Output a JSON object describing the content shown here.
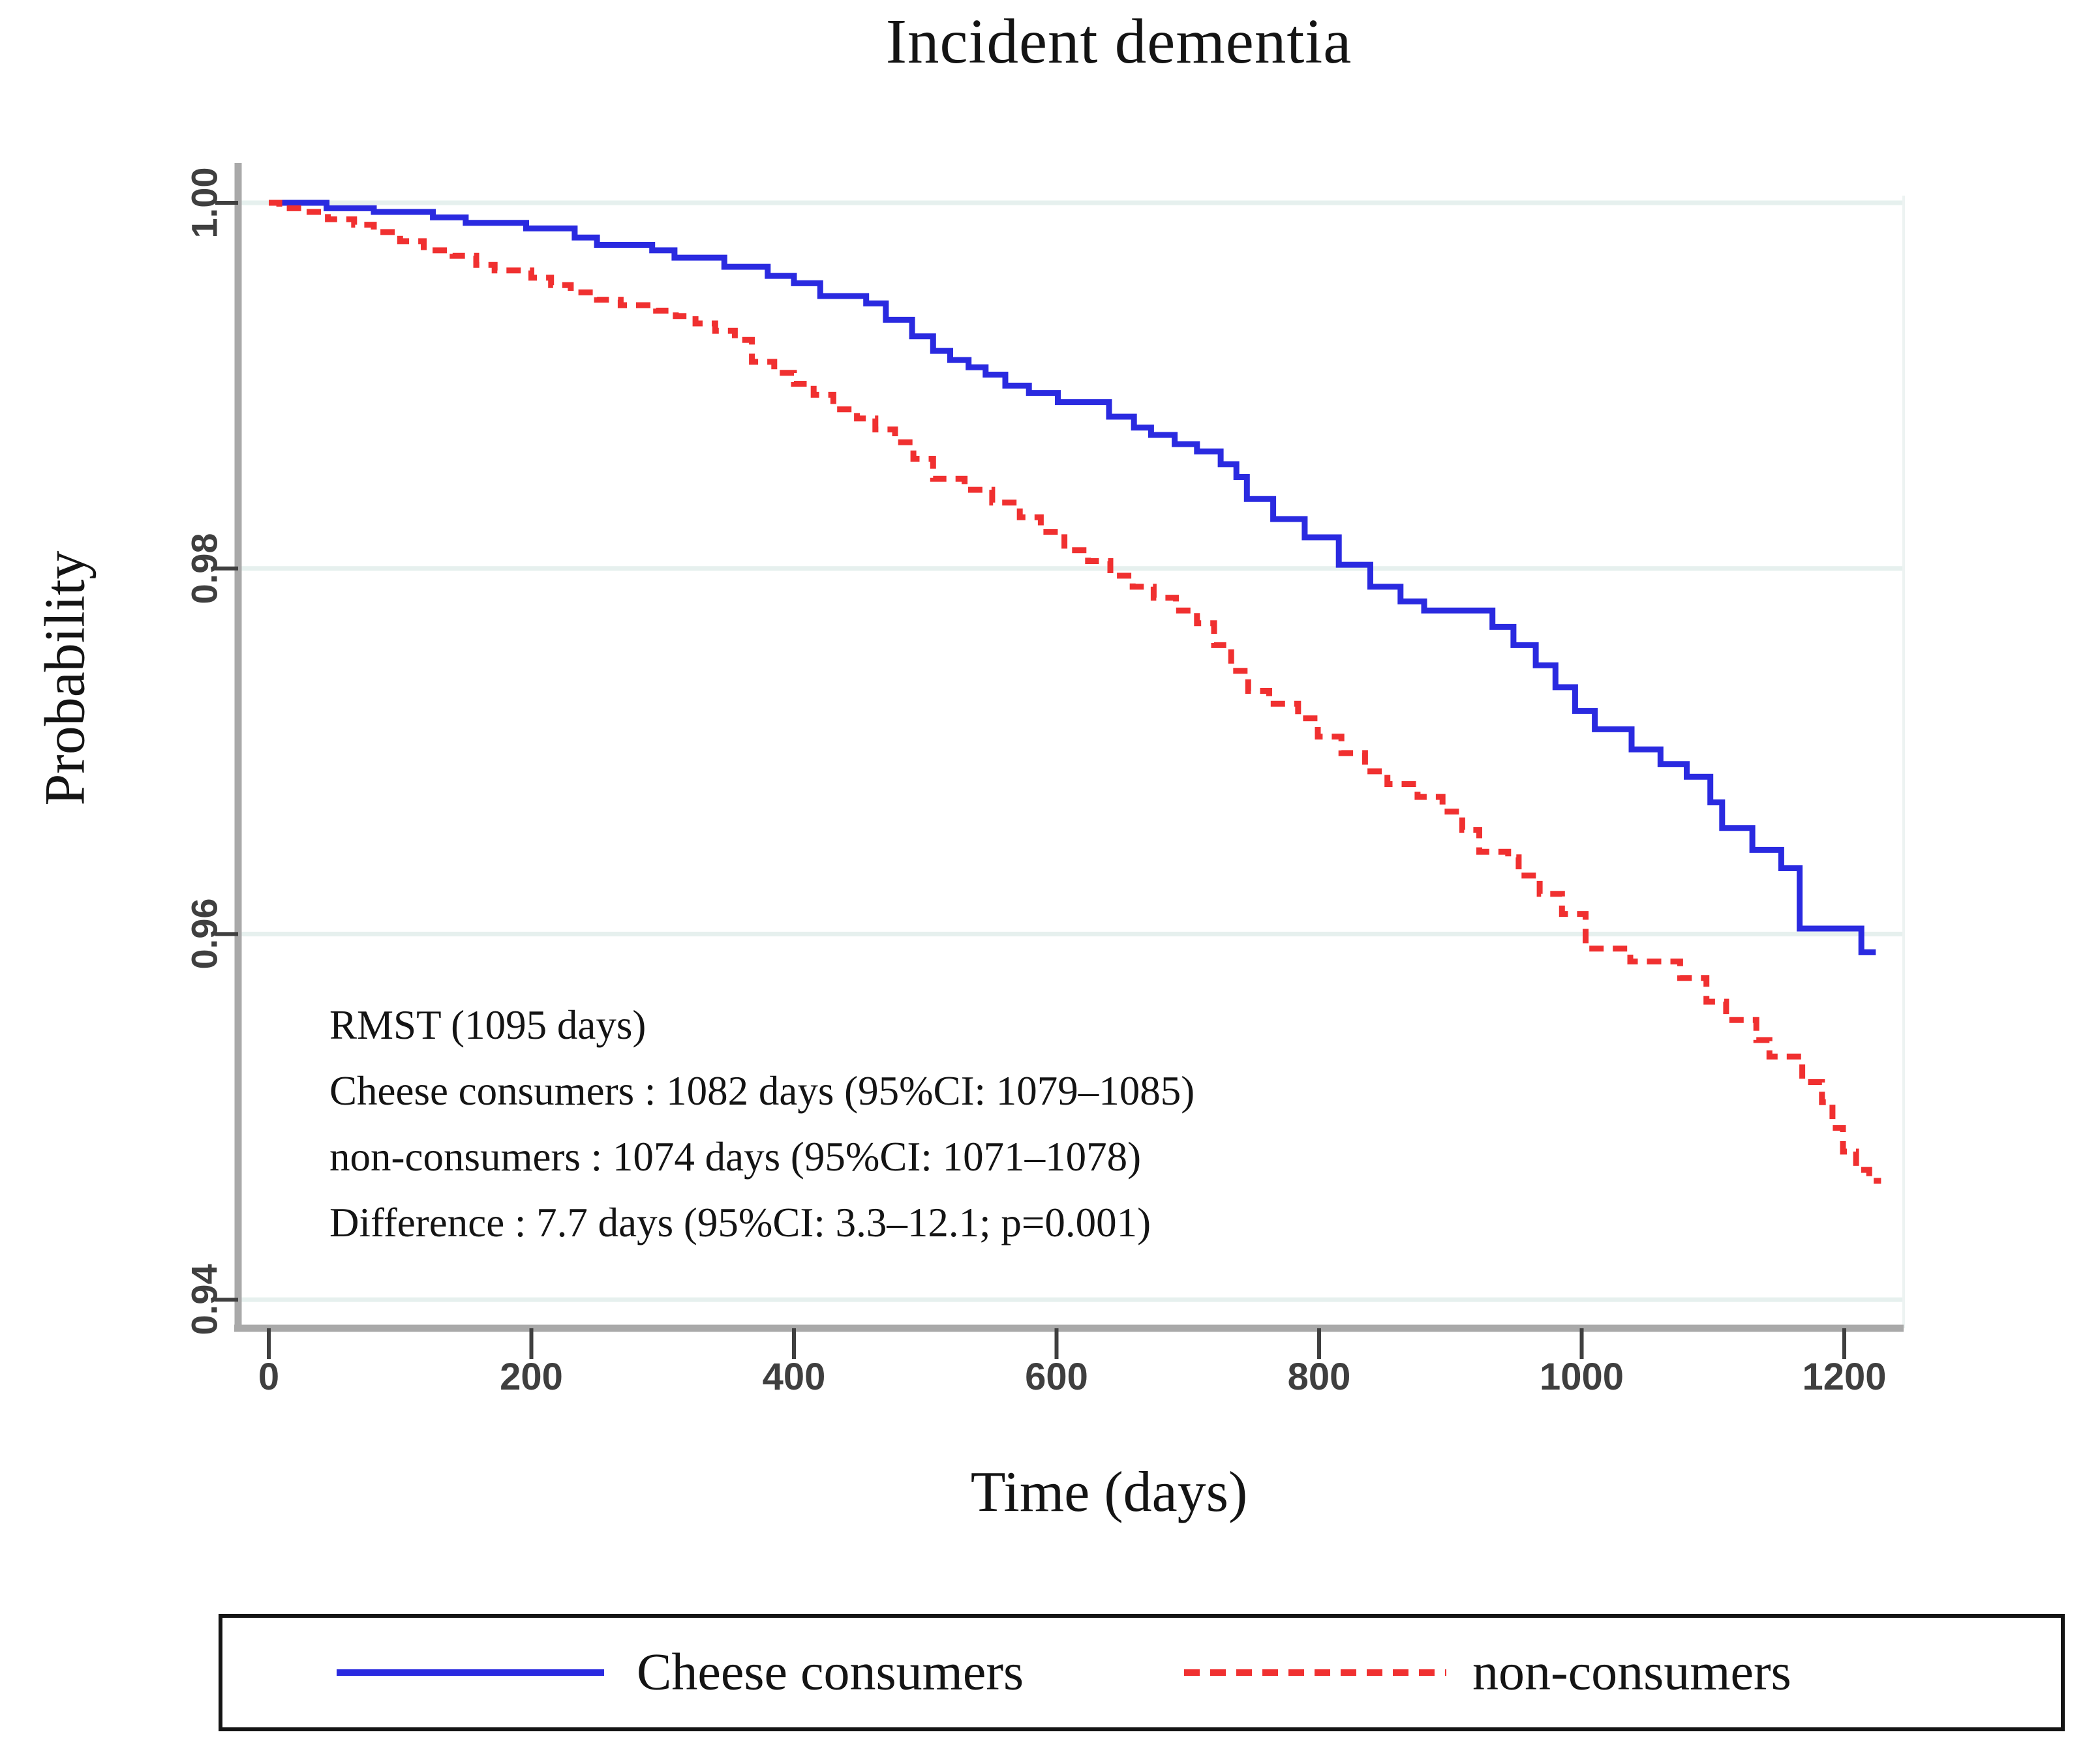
{
  "chart_data": {
    "type": "line",
    "subtype": "kaplan-meier-step",
    "title": "Incident dementia",
    "xlabel": "Time (days)",
    "ylabel": "Probability",
    "xlim": [
      0,
      1245
    ],
    "ylim": [
      0.9385,
      1.002
    ],
    "x_ticks": [
      0,
      200,
      400,
      600,
      800,
      1000,
      1200
    ],
    "x_tick_labels": [
      "0",
      "200",
      "400",
      "600",
      "800",
      "1000",
      "1200"
    ],
    "y_ticks": [
      1.0,
      0.98,
      0.96,
      0.94
    ],
    "y_tick_labels": [
      "1.00",
      "0.98",
      "0.96",
      "0.94"
    ],
    "grid": "horizontal-only",
    "legend_position": "bottom",
    "style": {
      "grid_color": "#e6f0ee",
      "axis_color": "#a9a9a9",
      "tick_color": "#3f3f3f",
      "right_border_color": "#edf3f2",
      "line_width": 9,
      "dash_pattern": "22 14"
    },
    "series": [
      {
        "name": "Cheese consumers",
        "color": "#2a2ae0",
        "line_style": "solid",
        "step": true,
        "points": [
          [
            0,
            1.0
          ],
          [
            44,
            1.0
          ],
          [
            44,
            0.9997
          ],
          [
            80,
            0.9997
          ],
          [
            80,
            0.9995
          ],
          [
            125,
            0.9995
          ],
          [
            125,
            0.9992
          ],
          [
            150,
            0.9992
          ],
          [
            150,
            0.9989
          ],
          [
            196,
            0.9989
          ],
          [
            196,
            0.9986
          ],
          [
            233,
            0.9986
          ],
          [
            233,
            0.9981
          ],
          [
            250,
            0.9981
          ],
          [
            250,
            0.9977
          ],
          [
            292,
            0.9977
          ],
          [
            292,
            0.9974
          ],
          [
            309,
            0.9974
          ],
          [
            309,
            0.997
          ],
          [
            347,
            0.997
          ],
          [
            347,
            0.9965
          ],
          [
            380,
            0.9965
          ],
          [
            380,
            0.996
          ],
          [
            400,
            0.996
          ],
          [
            400,
            0.9956
          ],
          [
            420,
            0.9956
          ],
          [
            420,
            0.9949
          ],
          [
            455,
            0.9949
          ],
          [
            455,
            0.9945
          ],
          [
            470,
            0.9945
          ],
          [
            470,
            0.9936
          ],
          [
            490,
            0.9936
          ],
          [
            490,
            0.9927
          ],
          [
            506,
            0.9927
          ],
          [
            506,
            0.9919
          ],
          [
            519,
            0.9919
          ],
          [
            519,
            0.9914
          ],
          [
            533,
            0.9914
          ],
          [
            533,
            0.991
          ],
          [
            546,
            0.991
          ],
          [
            546,
            0.9906
          ],
          [
            561,
            0.9906
          ],
          [
            561,
            0.99
          ],
          [
            579,
            0.99
          ],
          [
            579,
            0.9896
          ],
          [
            601,
            0.9896
          ],
          [
            601,
            0.9891
          ],
          [
            640,
            0.9891
          ],
          [
            640,
            0.9883
          ],
          [
            659,
            0.9883
          ],
          [
            659,
            0.9877
          ],
          [
            672,
            0.9877
          ],
          [
            672,
            0.9873
          ],
          [
            690,
            0.9873
          ],
          [
            690,
            0.9868
          ],
          [
            707,
            0.9868
          ],
          [
            707,
            0.9864
          ],
          [
            725,
            0.9864
          ],
          [
            725,
            0.9857
          ],
          [
            737,
            0.9857
          ],
          [
            737,
            0.985
          ],
          [
            745,
            0.985
          ],
          [
            745,
            0.9838
          ],
          [
            765,
            0.9838
          ],
          [
            765,
            0.9827
          ],
          [
            789,
            0.9827
          ],
          [
            789,
            0.9817
          ],
          [
            815,
            0.9817
          ],
          [
            815,
            0.9802
          ],
          [
            839,
            0.9802
          ],
          [
            839,
            0.979
          ],
          [
            862,
            0.979
          ],
          [
            862,
            0.9782
          ],
          [
            880,
            0.9782
          ],
          [
            880,
            0.9777
          ],
          [
            932,
            0.9777
          ],
          [
            932,
            0.9768
          ],
          [
            948,
            0.9768
          ],
          [
            948,
            0.9758
          ],
          [
            965,
            0.9758
          ],
          [
            965,
            0.9747
          ],
          [
            980,
            0.9747
          ],
          [
            980,
            0.9735
          ],
          [
            995,
            0.9735
          ],
          [
            995,
            0.9722
          ],
          [
            1010,
            0.9722
          ],
          [
            1010,
            0.9712
          ],
          [
            1038,
            0.9712
          ],
          [
            1038,
            0.9701
          ],
          [
            1060,
            0.9701
          ],
          [
            1060,
            0.9693
          ],
          [
            1080,
            0.9693
          ],
          [
            1080,
            0.9686
          ],
          [
            1098,
            0.9686
          ],
          [
            1098,
            0.9672
          ],
          [
            1107,
            0.9672
          ],
          [
            1107,
            0.9658
          ],
          [
            1130,
            0.9658
          ],
          [
            1130,
            0.9646
          ],
          [
            1152,
            0.9646
          ],
          [
            1152,
            0.9636
          ],
          [
            1166,
            0.9636
          ],
          [
            1166,
            0.9603
          ],
          [
            1213,
            0.9603
          ],
          [
            1213,
            0.959
          ],
          [
            1224,
            0.959
          ]
        ]
      },
      {
        "name": "non-consumers",
        "color": "#f03030",
        "line_style": "dashed",
        "step": true,
        "points": [
          [
            0,
            1.0
          ],
          [
            8,
            1.0
          ],
          [
            8,
            0.9997
          ],
          [
            25,
            0.9997
          ],
          [
            25,
            0.9995
          ],
          [
            45,
            0.9995
          ],
          [
            45,
            0.9991
          ],
          [
            65,
            0.9991
          ],
          [
            65,
            0.9988
          ],
          [
            80,
            0.9988
          ],
          [
            80,
            0.9984
          ],
          [
            100,
            0.9984
          ],
          [
            100,
            0.9979
          ],
          [
            118,
            0.9979
          ],
          [
            118,
            0.9974
          ],
          [
            140,
            0.9974
          ],
          [
            140,
            0.9971
          ],
          [
            158,
            0.9971
          ],
          [
            158,
            0.9966
          ],
          [
            172,
            0.9966
          ],
          [
            172,
            0.9963
          ],
          [
            200,
            0.9963
          ],
          [
            200,
            0.9959
          ],
          [
            215,
            0.9959
          ],
          [
            215,
            0.9955
          ],
          [
            230,
            0.9955
          ],
          [
            230,
            0.9951
          ],
          [
            250,
            0.9951
          ],
          [
            250,
            0.9947
          ],
          [
            268,
            0.9947
          ],
          [
            268,
            0.9944
          ],
          [
            295,
            0.9944
          ],
          [
            295,
            0.9941
          ],
          [
            310,
            0.9941
          ],
          [
            310,
            0.9938
          ],
          [
            325,
            0.9938
          ],
          [
            325,
            0.9934
          ],
          [
            340,
            0.9934
          ],
          [
            340,
            0.993
          ],
          [
            355,
            0.993
          ],
          [
            355,
            0.9925
          ],
          [
            368,
            0.9925
          ],
          [
            368,
            0.9913
          ],
          [
            385,
            0.9913
          ],
          [
            385,
            0.9907
          ],
          [
            400,
            0.9907
          ],
          [
            400,
            0.9901
          ],
          [
            415,
            0.9901
          ],
          [
            415,
            0.9895
          ],
          [
            430,
            0.9895
          ],
          [
            430,
            0.9887
          ],
          [
            448,
            0.9887
          ],
          [
            448,
            0.9882
          ],
          [
            462,
            0.9882
          ],
          [
            462,
            0.9876
          ],
          [
            477,
            0.9876
          ],
          [
            477,
            0.9869
          ],
          [
            491,
            0.9869
          ],
          [
            491,
            0.986
          ],
          [
            506,
            0.986
          ],
          [
            506,
            0.9849
          ],
          [
            530,
            0.9849
          ],
          [
            530,
            0.9843
          ],
          [
            551,
            0.9843
          ],
          [
            551,
            0.9836
          ],
          [
            572,
            0.9836
          ],
          [
            572,
            0.9828
          ],
          [
            588,
            0.9828
          ],
          [
            588,
            0.982
          ],
          [
            606,
            0.982
          ],
          [
            606,
            0.981
          ],
          [
            624,
            0.981
          ],
          [
            624,
            0.9804
          ],
          [
            641,
            0.9804
          ],
          [
            641,
            0.9796
          ],
          [
            658,
            0.9796
          ],
          [
            658,
            0.979
          ],
          [
            674,
            0.979
          ],
          [
            674,
            0.9784
          ],
          [
            691,
            0.9784
          ],
          [
            691,
            0.9777
          ],
          [
            707,
            0.9777
          ],
          [
            707,
            0.977
          ],
          [
            720,
            0.977
          ],
          [
            720,
            0.9758
          ],
          [
            733,
            0.9758
          ],
          [
            733,
            0.9744
          ],
          [
            746,
            0.9744
          ],
          [
            746,
            0.9733
          ],
          [
            762,
            0.9733
          ],
          [
            762,
            0.9726
          ],
          [
            784,
            0.9726
          ],
          [
            784,
            0.9718
          ],
          [
            799,
            0.9718
          ],
          [
            799,
            0.9708
          ],
          [
            817,
            0.9708
          ],
          [
            817,
            0.9699
          ],
          [
            835,
            0.9699
          ],
          [
            835,
            0.9689
          ],
          [
            852,
            0.9689
          ],
          [
            852,
            0.9682
          ],
          [
            875,
            0.9682
          ],
          [
            875,
            0.9675
          ],
          [
            894,
            0.9675
          ],
          [
            894,
            0.9667
          ],
          [
            909,
            0.9667
          ],
          [
            909,
            0.9657
          ],
          [
            922,
            0.9657
          ],
          [
            922,
            0.9645
          ],
          [
            944,
            0.9645
          ],
          [
            944,
            0.9642
          ],
          [
            952,
            0.9642
          ],
          [
            952,
            0.9632
          ],
          [
            968,
            0.9632
          ],
          [
            968,
            0.9622
          ],
          [
            985,
            0.9622
          ],
          [
            985,
            0.9611
          ],
          [
            1003,
            0.9611
          ],
          [
            1003,
            0.9592
          ],
          [
            1037,
            0.9592
          ],
          [
            1037,
            0.9585
          ],
          [
            1075,
            0.9585
          ],
          [
            1075,
            0.9576
          ],
          [
            1095,
            0.9576
          ],
          [
            1095,
            0.9563
          ],
          [
            1110,
            0.9563
          ],
          [
            1110,
            0.9553
          ],
          [
            1133,
            0.9553
          ],
          [
            1133,
            0.9542
          ],
          [
            1143,
            0.9542
          ],
          [
            1143,
            0.9533
          ],
          [
            1168,
            0.9533
          ],
          [
            1168,
            0.9519
          ],
          [
            1183,
            0.9519
          ],
          [
            1183,
            0.9508
          ],
          [
            1191,
            0.9508
          ],
          [
            1191,
            0.9494
          ],
          [
            1199,
            0.9494
          ],
          [
            1199,
            0.9481
          ],
          [
            1209,
            0.9481
          ],
          [
            1209,
            0.9471
          ],
          [
            1219,
            0.9471
          ],
          [
            1219,
            0.9465
          ],
          [
            1228,
            0.9465
          ]
        ]
      }
    ],
    "annotations": [
      "RMST (1095 days)",
      "Cheese consumers : 1082 days (95%CI: 1079–1085)",
      "non-consumers : 1074 days (95%CI: 1071–1078)",
      "Difference : 7.7 days (95%CI: 3.3–12.1; p=0.001)"
    ]
  },
  "annotation": {
    "lines": [
      "RMST (1095 days)",
      "Cheese consumers : 1082 days (95%CI: 1079–1085)",
      "non-consumers : 1074 days (95%CI: 1071–1078)",
      "Difference : 7.7 days (95%CI: 3.3–12.1; p=0.001)"
    ]
  },
  "legend": {
    "items": [
      {
        "label": "Cheese consumers",
        "color": "#2a2ae0",
        "style": "solid"
      },
      {
        "label": "non-consumers",
        "color": "#f03030",
        "style": "dashed"
      }
    ]
  }
}
